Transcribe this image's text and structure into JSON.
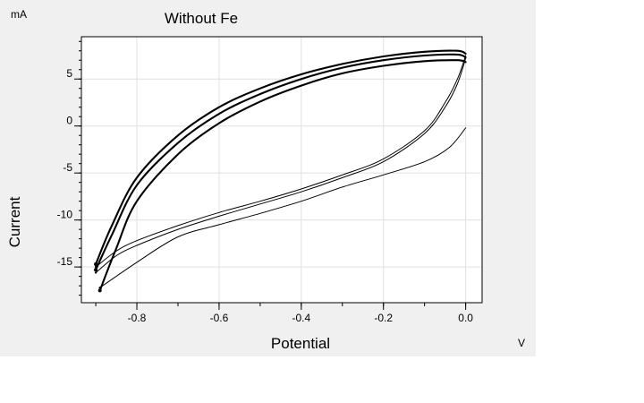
{
  "chart_data": {
    "type": "line",
    "title": "Without Fe",
    "xlabel": "Potential",
    "ylabel": "Current",
    "x_unit": "V",
    "y_unit": "mA",
    "xlim": [
      -0.935,
      0.04
    ],
    "ylim": [
      -18.8,
      9.5
    ],
    "x_ticks": [
      -0.8,
      -0.6,
      -0.4,
      -0.2,
      0.0
    ],
    "x_tick_labels": [
      "-0.8",
      "-0.6",
      "-0.4",
      "-0.2",
      "0.0"
    ],
    "y_ticks": [
      5,
      0,
      -5,
      -10,
      -15
    ],
    "y_tick_labels": [
      "5",
      "0",
      "-5",
      "-10",
      "-15"
    ],
    "grid": true,
    "legend": "none",
    "series": [
      {
        "style": "thick",
        "x": [
          -0.9,
          -0.86,
          -0.8,
          -0.7,
          -0.6,
          -0.5,
          -0.4,
          -0.3,
          -0.2,
          -0.1,
          -0.02,
          0.0
        ],
        "y": [
          -14.7,
          -10.5,
          -5.5,
          -1.0,
          2.0,
          4.0,
          5.5,
          6.6,
          7.4,
          7.9,
          8.0,
          7.7
        ]
      },
      {
        "style": "thick",
        "x": [
          -0.9,
          -0.86,
          -0.8,
          -0.7,
          -0.6,
          -0.5,
          -0.4,
          -0.3,
          -0.2,
          -0.1,
          -0.02,
          0.0
        ],
        "y": [
          -15.3,
          -11.5,
          -6.3,
          -1.8,
          1.3,
          3.4,
          5.0,
          6.2,
          7.0,
          7.5,
          7.6,
          7.3
        ]
      },
      {
        "style": "thick",
        "x": [
          -0.89,
          -0.85,
          -0.8,
          -0.7,
          -0.6,
          -0.5,
          -0.4,
          -0.3,
          -0.2,
          -0.1,
          -0.02,
          0.0
        ],
        "y": [
          -17.5,
          -13.0,
          -8.0,
          -3.0,
          0.3,
          2.6,
          4.3,
          5.6,
          6.4,
          6.9,
          7.0,
          6.8
        ]
      },
      {
        "style": "thin",
        "x": [
          -0.9,
          -0.85,
          -0.8,
          -0.7,
          -0.6,
          -0.5,
          -0.4,
          -0.3,
          -0.2,
          -0.1,
          -0.05,
          -0.02,
          0.0
        ],
        "y": [
          -15.0,
          -13.3,
          -12.2,
          -10.6,
          -9.2,
          -8.0,
          -6.7,
          -5.2,
          -3.5,
          -0.5,
          2.5,
          5.0,
          7.5
        ]
      },
      {
        "style": "thin",
        "x": [
          -0.9,
          -0.85,
          -0.8,
          -0.7,
          -0.6,
          -0.5,
          -0.4,
          -0.3,
          -0.2,
          -0.1,
          -0.05,
          -0.02,
          0.0
        ],
        "y": [
          -15.6,
          -13.8,
          -12.7,
          -11.0,
          -9.6,
          -8.3,
          -7.0,
          -5.5,
          -3.8,
          -0.8,
          2.0,
          4.5,
          7.2
        ]
      },
      {
        "style": "thin",
        "x": [
          -0.89,
          -0.8,
          -0.7,
          -0.6,
          -0.5,
          -0.4,
          -0.3,
          -0.2,
          -0.1,
          -0.04,
          0.0
        ],
        "y": [
          -17.2,
          -14.5,
          -11.8,
          -10.5,
          -9.3,
          -8.0,
          -6.5,
          -5.2,
          -3.8,
          -2.3,
          -0.2
        ]
      }
    ]
  }
}
